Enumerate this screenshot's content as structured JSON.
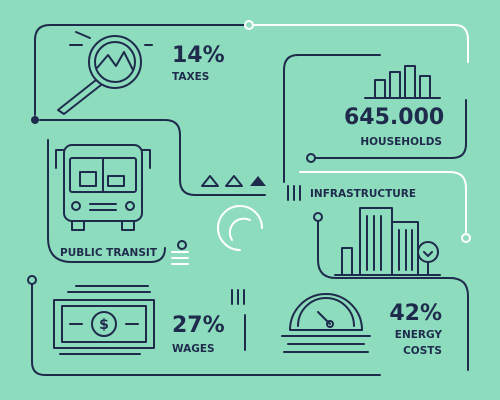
{
  "taxes": {
    "value": "14%",
    "label": "TAXES"
  },
  "households": {
    "value": "645.000",
    "label": "HOUSEHOLDS"
  },
  "infrastructure": {
    "label": "INFRASTRUCTURE"
  },
  "public_transit": {
    "label": "PUBLIC TRANSIT"
  },
  "wages": {
    "value": "27%",
    "label": "WAGES"
  },
  "energy": {
    "value": "42%",
    "label_lines": [
      "ENERGY",
      "COSTS"
    ]
  }
}
